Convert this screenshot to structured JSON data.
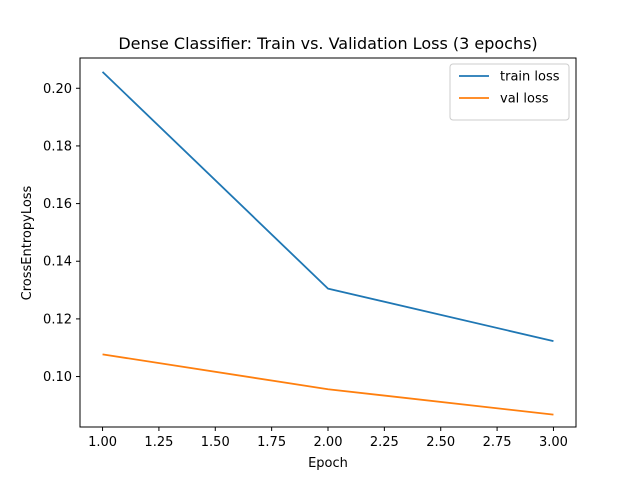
{
  "chart_data": {
    "type": "line",
    "title": "Dense Classifier: Train vs. Validation Loss (3 epochs)",
    "xlabel": "Epoch",
    "ylabel": "CrossEntropyLoss",
    "xlim": [
      0.9,
      3.1
    ],
    "ylim": [
      0.0825,
      0.2105
    ],
    "x_ticks": [
      "1.00",
      "1.25",
      "1.50",
      "1.75",
      "2.00",
      "2.25",
      "2.50",
      "2.75",
      "3.00"
    ],
    "y_ticks": [
      "0.10",
      "0.12",
      "0.14",
      "0.16",
      "0.18",
      "0.20"
    ],
    "grid": false,
    "legend_position": "upper right",
    "x": [
      1,
      2,
      3
    ],
    "series": [
      {
        "name": "train loss",
        "color": "#1f77b4",
        "values": [
          0.2057,
          0.1305,
          0.1123
        ]
      },
      {
        "name": "val loss",
        "color": "#ff7f0e",
        "values": [
          0.1077,
          0.0956,
          0.0868
        ]
      }
    ]
  }
}
